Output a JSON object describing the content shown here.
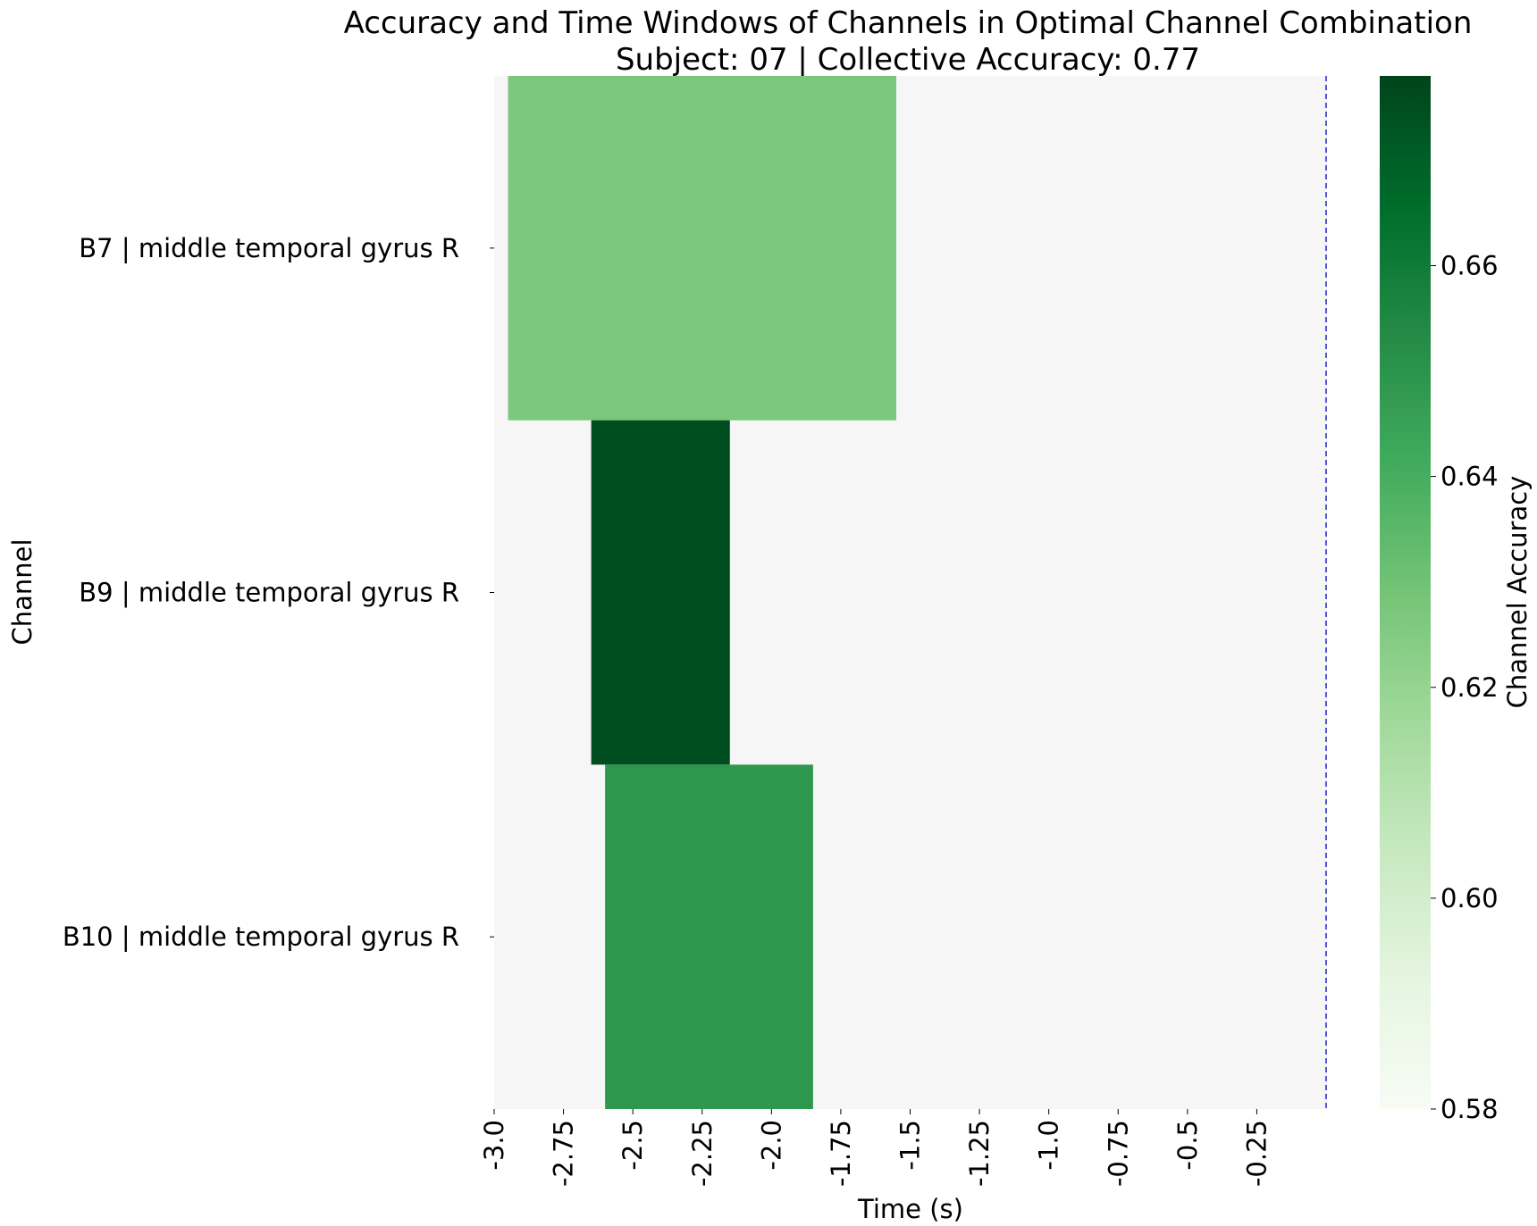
{
  "chart_data": {
    "type": "heatmap",
    "title": "Accuracy and Time Windows of Channels in Optimal Channel Combination",
    "subtitle": "Subject: 07 | Collective Accuracy: 0.77",
    "xlabel": "Time (s)",
    "ylabel": "Channel",
    "x_ticks": [
      "-3.0",
      "-2.75",
      "-2.5",
      "-2.25",
      "-2.0",
      "-1.75",
      "-1.5",
      "-1.25",
      "-1.0",
      "-0.75",
      "-0.5",
      "-0.25"
    ],
    "xlim": [
      -3.0,
      0.0
    ],
    "channels": [
      "B7 | middle temporal gyrus R",
      "B9 | middle temporal gyrus R",
      "B10 | middle temporal gyrus R"
    ],
    "windows": [
      {
        "channel": "B7 | middle temporal gyrus R",
        "start": -2.95,
        "end": -1.55,
        "accuracy": 0.627
      },
      {
        "channel": "B9 | middle temporal gyrus R",
        "start": -2.65,
        "end": -2.15,
        "accuracy": 0.675
      },
      {
        "channel": "B10 | middle temporal gyrus R",
        "start": -2.6,
        "end": -1.85,
        "accuracy": 0.649
      }
    ],
    "background_color": "#f6f6f6",
    "event_line": {
      "x": 0.0,
      "color": "#0000cc",
      "style": "dashed"
    },
    "colorbar": {
      "label": "Channel Accuracy",
      "ticks": [
        "0.58",
        "0.60",
        "0.62",
        "0.64",
        "0.66"
      ],
      "range": [
        0.58,
        0.678
      ],
      "colormap": "Greens",
      "colors": [
        "#f7fcf5",
        "#e5f5e0",
        "#c7e9c0",
        "#a1d99b",
        "#74c476",
        "#41ab5d",
        "#238b45",
        "#006d2c",
        "#00441b"
      ]
    },
    "grid": false
  }
}
